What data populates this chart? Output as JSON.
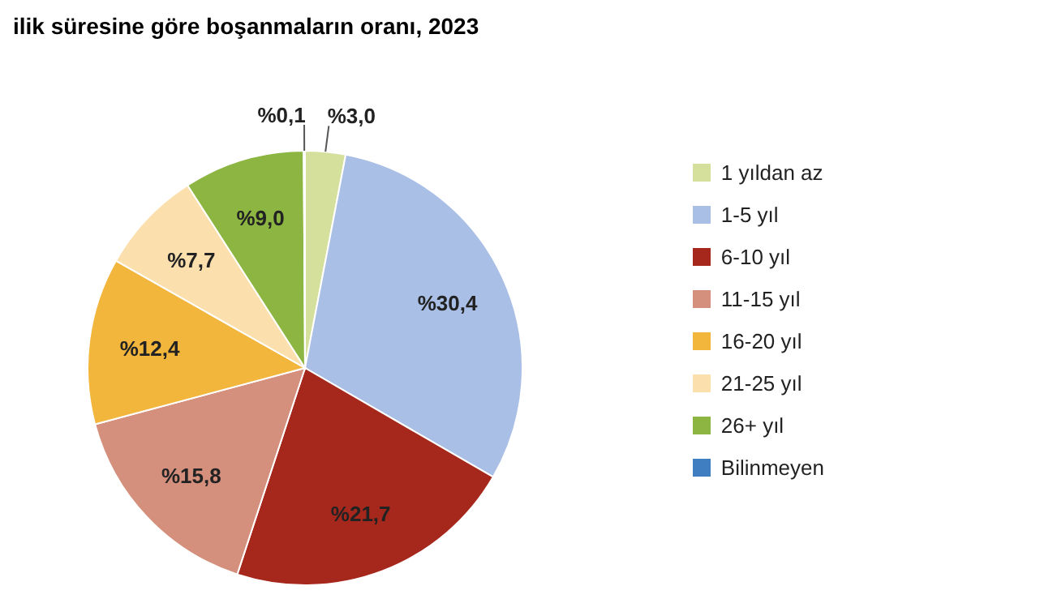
{
  "chart_data": {
    "type": "pie",
    "title": "ilik süresine göre boşanmaların oranı, 2023",
    "categories": [
      "1 yıldan az",
      "1-5 yıl",
      "6-10 yıl",
      "11-15 yıl",
      "16-20 yıl",
      "21-25 yıl",
      "26+ yıl",
      "Bilinmeyen"
    ],
    "values": [
      3.0,
      30.4,
      21.7,
      15.8,
      12.4,
      7.7,
      9.0,
      0.1
    ],
    "value_labels": [
      "%3,0",
      "%30,4",
      "%21,7",
      "%15,8",
      "%12,4",
      "%7,7",
      "%9,0",
      "%0,1"
    ],
    "colors": [
      "#d4e09b",
      "#a9bfe6",
      "#a6281c",
      "#d4907c",
      "#f2b63d",
      "#fbe0ae",
      "#8cb641",
      "#3f7ec0"
    ],
    "legend": "right"
  }
}
